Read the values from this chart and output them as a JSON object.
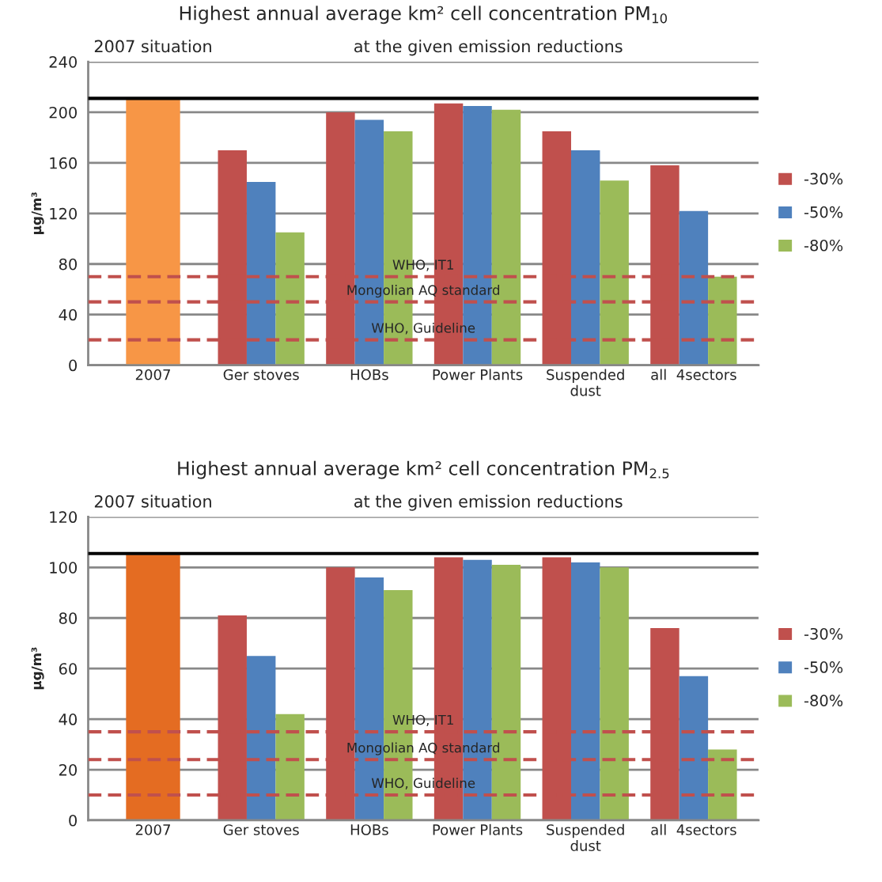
{
  "chart_data": [
    {
      "type": "bar",
      "title": "Highest annual average km² cell concentration PM$_{10}$",
      "ylabel": "μg/m³",
      "categories": [
        "2007",
        "Ger stoves",
        "HOBs",
        "Power Plants",
        "Suspended\ndust",
        "all  4sectors"
      ],
      "series": [
        {
          "color": "#f79646",
          "values": [
            210,
            null,
            null,
            null,
            null,
            null
          ]
        },
        {
          "name": "-30%",
          "color": "#c0504d",
          "values": [
            null,
            170,
            200,
            207,
            185,
            158
          ]
        },
        {
          "name": "-50%",
          "color": "#4f81bd",
          "values": [
            null,
            145,
            194,
            205,
            170,
            122
          ]
        },
        {
          "name": "-80%",
          "color": "#9bbb59",
          "values": [
            null,
            105,
            185,
            202,
            146,
            70
          ]
        }
      ],
      "ylim": [
        0,
        240
      ],
      "yticks": [
        0,
        40,
        80,
        120,
        160,
        200,
        240
      ],
      "grid": "y",
      "legend": "right",
      "ref_lines": [
        {
          "axis": "y",
          "value": 211,
          "color": "#000000",
          "line_style": "solid"
        },
        {
          "axis": "y",
          "value": 70,
          "label": "WHO, IT1",
          "color": "#c0504d",
          "line_style": "dashed"
        },
        {
          "axis": "y",
          "value": 50,
          "label": "Mongolian AQ standard",
          "color": "#c0504d",
          "line_style": "dashed"
        },
        {
          "axis": "y",
          "value": 20,
          "label": "WHO, Guideline",
          "color": "#c0504d",
          "line_style": "dashed"
        }
      ],
      "annotations": [
        "2007 situation",
        "at the given emission reductions"
      ]
    },
    {
      "type": "bar",
      "title": "Highest annual average km² cell concentration PM$_{2.5}$",
      "ylabel": "μg/m³",
      "categories": [
        "2007",
        "Ger stoves",
        "HOBs",
        "Power Plants",
        "Suspended\ndust",
        "all  4sectors"
      ],
      "series": [
        {
          "color": "#e46c22",
          "values": [
            105,
            null,
            null,
            null,
            null,
            null
          ]
        },
        {
          "name": "-30%",
          "color": "#c0504d",
          "values": [
            null,
            81,
            100,
            104,
            104,
            76
          ]
        },
        {
          "name": "-50%",
          "color": "#4f81bd",
          "values": [
            null,
            65,
            96,
            103,
            102,
            57
          ]
        },
        {
          "name": "-80%",
          "color": "#9bbb59",
          "values": [
            null,
            42,
            91,
            101,
            100,
            28
          ]
        }
      ],
      "ylim": [
        0,
        120
      ],
      "yticks": [
        0,
        20,
        40,
        60,
        80,
        100,
        120
      ],
      "grid": "y",
      "legend": "right",
      "ref_lines": [
        {
          "axis": "y",
          "value": 105.5,
          "color": "#000000",
          "line_style": "solid"
        },
        {
          "axis": "y",
          "value": 35,
          "label": "WHO, IT1",
          "color": "#c0504d",
          "line_style": "dashed"
        },
        {
          "axis": "y",
          "value": 24,
          "label": "Mongolian AQ standard",
          "color": "#c0504d",
          "line_style": "dashed"
        },
        {
          "axis": "y",
          "value": 10,
          "label": "WHO, Guideline",
          "color": "#c0504d",
          "line_style": "dashed"
        }
      ],
      "annotations": [
        "2007 situation",
        "at the given emission reductions"
      ]
    }
  ]
}
